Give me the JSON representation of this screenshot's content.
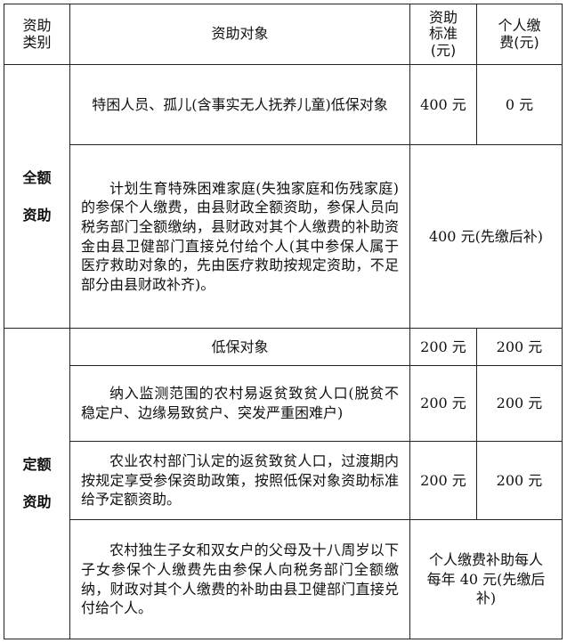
{
  "header": [
    "资助类别",
    "资助对象",
    "资助标准(元)",
    "个人缴费(元)"
  ],
  "groups": [
    {
      "category": "全额资助",
      "rows": [
        {
          "target": "特困人员、孤儿(含事实无人抚养儿童)低保对象",
          "standard": "400 元",
          "personal": "0 元"
        },
        {
          "target": "计划生育特殊困难家庭(失独家庭和伤残家庭)的参保个人缴费，由县财政全额资助，参保人员向税务部门全额缴纳，县财政对其个人缴费的补助资金由县卫健部门直接兑付给个人(其中参保人属于医疗救助对象的，先由医疗救助按规定资助，不足部分由县财政补齐)。",
          "combined": "400 元(先缴后补)"
        }
      ]
    },
    {
      "category": "定额资助",
      "rows": [
        {
          "target": "低保对象",
          "standard": "200 元",
          "personal": "200 元"
        },
        {
          "target": "纳入监测范围的农村易返贫致贫人口(脱贫不稳定户、边缘易致贫户、突发严重困难户)",
          "standard": "200 元",
          "personal": "200 元"
        },
        {
          "target": "农业农村部门认定的返贫致贫人口，过渡期内按规定享受参保资助政策，按照低保对象资助标准给予定额资助。",
          "standard": "200 元",
          "personal": "200 元"
        },
        {
          "target": "农村独生子女和双女户的父母及十八周岁以下子女参保个人缴费先由参保人向税务部门全额缴纳，财政对其个人缴费的补助由县卫健部门直接兑付给个人。",
          "combined": "个人缴费补助每人每年 40 元(先缴后补)"
        }
      ]
    }
  ]
}
